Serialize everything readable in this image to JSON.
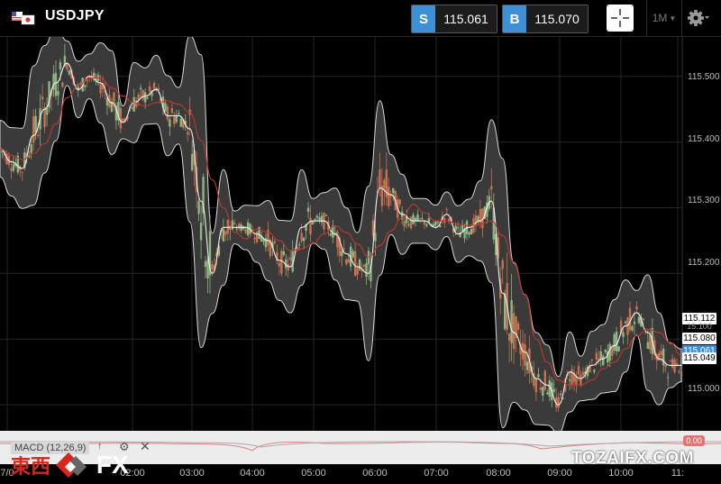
{
  "header": {
    "symbol": "USDJPY",
    "flag_icon": "us-jp-flag-icon",
    "sell_tag": "S",
    "sell_price": "115.061",
    "buy_tag": "B",
    "buy_price": "115.070",
    "crosshair_icon": "crosshair-icon",
    "timeframe": "1M",
    "settings_icon": "gear-icon"
  },
  "price_axis": {
    "ticks": [
      "115.500",
      "115.400",
      "115.300",
      "115.200",
      "115.000"
    ],
    "labels": {
      "upper": "115.112",
      "middle": "115.080",
      "current": "115.061",
      "lower": "115.049",
      "partial": "15.100"
    }
  },
  "time_axis": [
    "7/0",
    "02:00",
    "03:00",
    "04:00",
    "05:00",
    "06:00",
    "07:00",
    "08:00",
    "09:00",
    "10:00",
    "11:"
  ],
  "macd": {
    "label": "MACD (12,26,9)",
    "up_icon": "arrow-up-icon",
    "gear_icon": "gear-icon",
    "close_icon": "close-icon",
    "badge": "0.00"
  },
  "watermarks": {
    "left_cjk": "東西",
    "left_fx": "FX",
    "right": "TOZAIFX.COM"
  },
  "colors": {
    "background": "#000000",
    "accent_blue": "#3d8fd6",
    "band_fill": "#3a3a3a",
    "candle_up": "#8fb583",
    "candle_down": "#c8714f",
    "ma_red": "#c0392b"
  },
  "chart_data": {
    "type": "line",
    "title": "",
    "ylim": [
      114.97,
      115.56
    ],
    "series": [
      {
        "x": [
          "01:00",
          "01:10",
          "01:20",
          "01:30",
          "01:40",
          "01:50",
          "02:00",
          "02:10",
          "02:20",
          "02:30",
          "02:40",
          "02:50",
          "03:00",
          "03:10",
          "03:20",
          "03:30",
          "03:40",
          "03:50",
          "04:00",
          "04:05",
          "04:10",
          "04:20",
          "04:30",
          "04:40",
          "04:50",
          "05:00",
          "05:10",
          "05:20",
          "05:30",
          "05:40",
          "05:50",
          "06:00",
          "06:10",
          "06:20",
          "06:30",
          "06:40",
          "06:50",
          "07:00",
          "07:10",
          "07:20",
          "07:30",
          "07:40",
          "07:50",
          "08:00",
          "08:10",
          "08:20",
          "08:30",
          "08:40",
          "08:50",
          "09:00",
          "09:10",
          "09:20",
          "09:30",
          "09:40",
          "09:50",
          "10:00",
          "10:10",
          "10:20",
          "10:30",
          "10:40",
          "10:50",
          "11:00"
        ],
        "values": [
          115.39,
          115.37,
          115.36,
          115.41,
          115.45,
          115.49,
          115.52,
          115.48,
          115.5,
          115.49,
          115.46,
          115.43,
          115.46,
          115.47,
          115.48,
          115.44,
          115.44,
          115.42,
          115.31,
          115.2,
          115.27,
          115.27,
          115.27,
          115.26,
          115.25,
          115.22,
          115.21,
          115.27,
          115.28,
          115.28,
          115.26,
          115.23,
          115.21,
          115.2,
          115.33,
          115.32,
          115.29,
          115.28,
          115.28,
          115.27,
          115.29,
          115.26,
          115.27,
          115.28,
          115.31,
          115.17,
          115.11,
          115.08,
          115.04,
          115.03,
          115.0,
          115.05,
          115.04,
          115.06,
          115.07,
          115.09,
          115.12,
          115.14,
          115.11,
          115.07,
          115.06,
          115.06
        ]
      }
    ]
  }
}
